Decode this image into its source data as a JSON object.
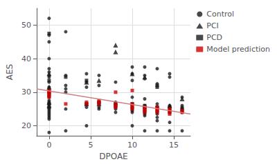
{
  "chart_data": {
    "type": "scatter",
    "xlabel": "DPOAE",
    "ylabel": "AES",
    "xlim": [
      -1.5,
      17
    ],
    "ylim": [
      17,
      55
    ],
    "xticks": [
      0,
      5,
      10,
      15
    ],
    "yticks": [
      20,
      30,
      40,
      50
    ],
    "grid": true,
    "legend": "right",
    "series": [
      {
        "name": "Control",
        "color": "#1a1a1a",
        "marker": "circle",
        "x": [
          0,
          0,
          0,
          0,
          0,
          0,
          0,
          0,
          0,
          0,
          0,
          0,
          0,
          0,
          0,
          0,
          0,
          0,
          0,
          0,
          0,
          0,
          0,
          0,
          0,
          0,
          0,
          2,
          2,
          2,
          2,
          2,
          2,
          2,
          4.5,
          4.5,
          4.5,
          4.5,
          4.5,
          4.5,
          6,
          6,
          6,
          6,
          6,
          6,
          8,
          8,
          8,
          8,
          8,
          8,
          10,
          10,
          10,
          10,
          10,
          10,
          10,
          10,
          10,
          10,
          11.5,
          11.5,
          11.5,
          11.5,
          11.5,
          11.5,
          11.5,
          11.5,
          11.5,
          11.5,
          11.5,
          11.5,
          13,
          13,
          13,
          13,
          13,
          13,
          13,
          13,
          13,
          13,
          14.5,
          14.5,
          14.5,
          14.5,
          14.5,
          14.5,
          14.5,
          14.5,
          14.5,
          16,
          16,
          16,
          16,
          16,
          16,
          16
        ],
        "values": [
          52,
          47,
          45,
          40,
          37,
          36,
          35,
          34.5,
          33,
          31.5,
          31,
          30.5,
          29.5,
          29,
          28.5,
          27.5,
          27,
          26.5,
          25.5,
          25,
          24.5,
          24,
          23.5,
          23,
          22.5,
          22,
          18,
          48,
          35,
          32,
          31,
          30,
          25,
          18.5,
          35.5,
          33,
          31.5,
          26.5,
          25.5,
          20,
          35,
          32,
          27,
          26.5,
          25.5,
          25,
          33,
          27,
          26.5,
          25.5,
          25,
          24,
          37.5,
          35.5,
          33.5,
          28.5,
          26.5,
          25.5,
          25,
          24.5,
          24,
          20,
          37.5,
          35,
          34,
          28,
          26,
          25.5,
          25,
          24.5,
          24,
          23.5,
          23,
          18.5,
          37,
          32.5,
          26.5,
          25.5,
          24.5,
          24,
          23.5,
          22.5,
          21.5,
          18.5,
          35.5,
          34.5,
          26,
          25.5,
          25,
          24.5,
          24,
          21,
          18.5,
          28.5,
          26,
          25.5,
          25,
          24.5,
          24,
          18.5
        ]
      },
      {
        "name": "PCI",
        "color": "#1a1a1a",
        "marker": "triangle",
        "x": [
          0,
          0,
          0,
          0,
          4.5,
          4.5,
          6,
          6,
          8,
          8,
          10,
          11.5,
          14.5,
          16
        ],
        "values": [
          35.5,
          31.5,
          27,
          26,
          33,
          26.5,
          33.5,
          26.5,
          44,
          42,
          35.5,
          34.5,
          26,
          28
        ]
      },
      {
        "name": "PCD",
        "color": "#1a1a1a",
        "marker": "square",
        "x": [
          0,
          0,
          0,
          0,
          0,
          2,
          4.5,
          4.5,
          6,
          8,
          8,
          10,
          11.5,
          11.5,
          13,
          13,
          13,
          14.5,
          16
        ],
        "values": [
          47.5,
          33.5,
          30,
          26.5,
          25.5,
          34.5,
          33.5,
          26.5,
          27,
          26.5,
          26,
          26.5,
          26,
          25.5,
          32,
          31.5,
          25.5,
          25.5,
          25
        ]
      },
      {
        "name": "Model prediction",
        "color": "#cc0000",
        "marker": "square",
        "x": [
          0,
          0,
          0,
          0,
          0,
          2,
          4.5,
          4.5,
          6,
          6,
          6,
          8,
          8,
          8,
          8,
          10,
          10,
          10,
          10,
          10,
          11.5,
          11.5,
          11.5,
          11.5,
          13,
          13,
          13,
          13,
          14.5,
          14.5,
          14.5,
          14.5,
          16,
          16
        ],
        "values": [
          30.5,
          30,
          29.5,
          29,
          28.5,
          26.5,
          27,
          26.5,
          27.5,
          27,
          26.5,
          30,
          26.5,
          26,
          25.5,
          30.5,
          26.5,
          26,
          25.5,
          25,
          25.5,
          25,
          24.5,
          24,
          25.5,
          25,
          24.5,
          24,
          25,
          24.5,
          24,
          23.5,
          24.5,
          24
        ]
      },
      {
        "type": "line",
        "color": "#d08080",
        "x": [
          -1.5,
          17.0
        ],
        "values": [
          31.0,
          23.5
        ]
      }
    ]
  }
}
